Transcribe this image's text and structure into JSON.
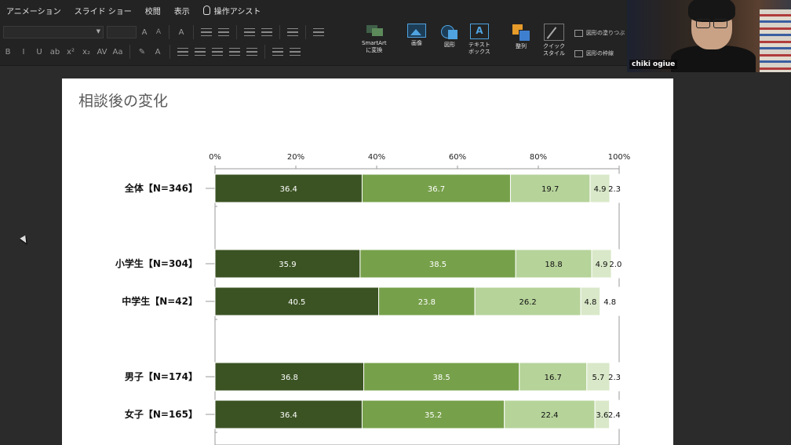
{
  "ribbon": {
    "tabs": [
      "アニメーション",
      "スライド ショー",
      "校閲",
      "表示"
    ],
    "assist_label": "操作アシスト",
    "buttons": {
      "smartart": "SmartArt\nに変換",
      "picture": "画像",
      "shapes": "図形",
      "textbox": "テキスト\nボックス",
      "arrange": "整列",
      "quick_styles": "クイック\nスタイル",
      "shape_fill": "図形の塗りつぶ",
      "shape_outline": "図形の枠線"
    }
  },
  "webcam": {
    "name": "chiki ogiue"
  },
  "slide": {
    "title": "相談後の変化"
  },
  "chart_data": {
    "type": "bar",
    "orientation": "horizontal-stacked-percent",
    "xlim": [
      0,
      100
    ],
    "x_ticks": [
      "0%",
      "20%",
      "40%",
      "60%",
      "80%",
      "100%"
    ],
    "categories": [
      "全体【N=346】",
      "小学生【N=304】",
      "中学生【N=42】",
      "男子【N=174】",
      "女子【N=165】"
    ],
    "series": [
      {
        "color": "#3b5323",
        "label_color": "#ffffff",
        "values": [
          36.4,
          35.9,
          40.5,
          36.8,
          36.4
        ]
      },
      {
        "color": "#76a04a",
        "label_color": "#ffffff",
        "values": [
          36.7,
          38.5,
          23.8,
          38.5,
          35.2
        ]
      },
      {
        "color": "#b6d39a",
        "label_color": "#111111",
        "values": [
          19.7,
          18.8,
          26.2,
          16.7,
          22.4
        ]
      },
      {
        "color": "#d9e8c8",
        "label_color": "#111111",
        "values": [
          4.9,
          4.9,
          4.8,
          5.7,
          3.6
        ]
      },
      {
        "color": "#ffffff",
        "label_color": "#111111",
        "values": [
          2.3,
          2.0,
          4.8,
          2.3,
          2.4
        ]
      }
    ],
    "value_labels": [
      [
        "36.4",
        "36.7",
        "19.7",
        "4.9",
        "2.3"
      ],
      [
        "35.9",
        "38.5",
        "18.8",
        "4.9",
        "2.0"
      ],
      [
        "40.5",
        "23.8",
        "26.2",
        "4.8",
        "4.8"
      ],
      [
        "36.8",
        "38.5",
        "16.7",
        "5.7",
        "2.3"
      ],
      [
        "36.4",
        "35.2",
        "22.4",
        "3.6",
        "2.4"
      ]
    ]
  }
}
